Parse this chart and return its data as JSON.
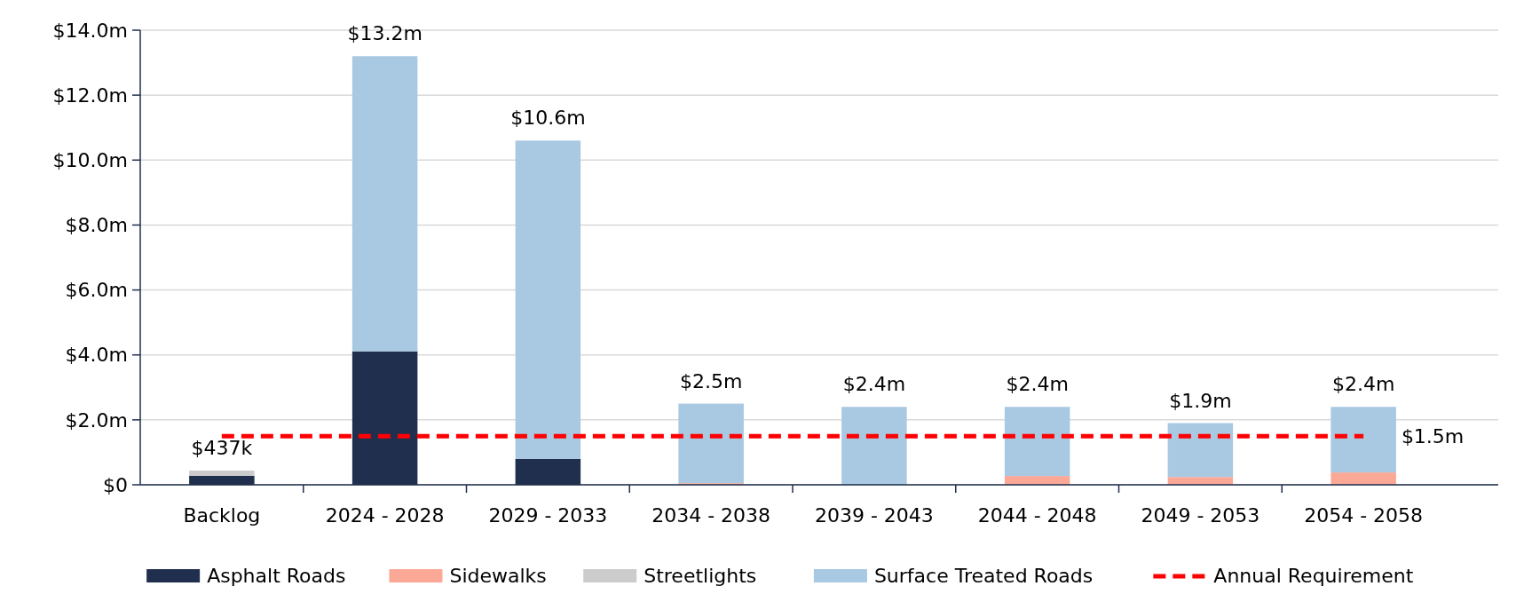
{
  "chart_data": {
    "type": "bar",
    "stacked": true,
    "categories": [
      "Backlog",
      "2024 - 2028",
      "2029 - 2033",
      "2034 - 2038",
      "2039 - 2043",
      "2044 - 2048",
      "2049 - 2053",
      "2054 - 2058"
    ],
    "series": [
      {
        "name": "Asphalt Roads",
        "color": "#1f2f4d",
        "values": [
          0.28,
          4.11,
          0.8,
          0,
          0,
          0,
          0,
          0
        ]
      },
      {
        "name": "Sidewalks",
        "color": "#fba896",
        "values": [
          0,
          0,
          0,
          0.05,
          0,
          0.27,
          0.24,
          0.38
        ]
      },
      {
        "name": "Streetlights",
        "color": "#cccccc",
        "values": [
          0.157,
          0,
          0,
          0,
          0,
          0,
          0,
          0
        ]
      },
      {
        "name": "Surface Treated Roads",
        "color": "#a9c8e1",
        "values": [
          0,
          9.09,
          9.8,
          2.45,
          2.4,
          2.13,
          1.66,
          2.02
        ]
      },
      {
        "name": "Annual Requirement",
        "type": "line",
        "line_style": "dashed",
        "color": "#ff0000",
        "values": [
          1.5,
          1.5,
          1.5,
          1.5,
          1.5,
          1.5,
          1.5,
          1.5
        ]
      }
    ],
    "totals": [
      "$437k",
      "$13.2m",
      "$10.6m",
      "$2.5m",
      "$2.4m",
      "$2.4m",
      "$1.9m",
      "$2.4m"
    ],
    "annotations": [
      {
        "text": "$1.5m",
        "x": "2054 - 2058",
        "y": 1.5
      }
    ],
    "ylim": [
      0,
      14
    ],
    "yticks": [
      {
        "value": 0,
        "label": "$0"
      },
      {
        "value": 2,
        "label": "$2.0m"
      },
      {
        "value": 4,
        "label": "$4.0m"
      },
      {
        "value": 6,
        "label": "$6.0m"
      },
      {
        "value": 8,
        "label": "$8.0m"
      },
      {
        "value": 10,
        "label": "$10.0m"
      },
      {
        "value": 12,
        "label": "$12.0m"
      },
      {
        "value": 14,
        "label": "$14.0m"
      }
    ],
    "grid": "y",
    "legend": "bottom"
  }
}
